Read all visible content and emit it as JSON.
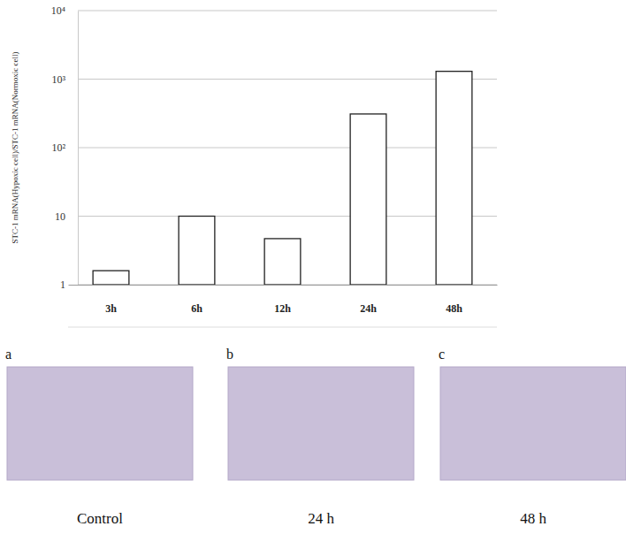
{
  "chart_data": {
    "type": "bar",
    "ylabel": "STC-1 mRNA(Hypoxic cell)/STC-1 mRNA(Normoxic cell)",
    "categories": [
      "3h",
      "6h",
      "12h",
      "24h",
      "48h"
    ],
    "values": [
      1.6,
      10,
      4.7,
      310,
      1300
    ],
    "color": "#ffffff",
    "log": "y",
    "ylim": [
      1,
      10000
    ],
    "yticks": [
      1,
      10,
      {
        "value": 100,
        "label": "10²"
      },
      {
        "value": 1000,
        "label": "10³"
      },
      {
        "value": 10000,
        "label": "10⁴"
      }
    ],
    "grid": true
  },
  "panels": [
    {
      "label": "a",
      "caption": "Control"
    },
    {
      "label": "b",
      "caption": "24 h"
    },
    {
      "label": "c",
      "caption": "48 h"
    }
  ]
}
